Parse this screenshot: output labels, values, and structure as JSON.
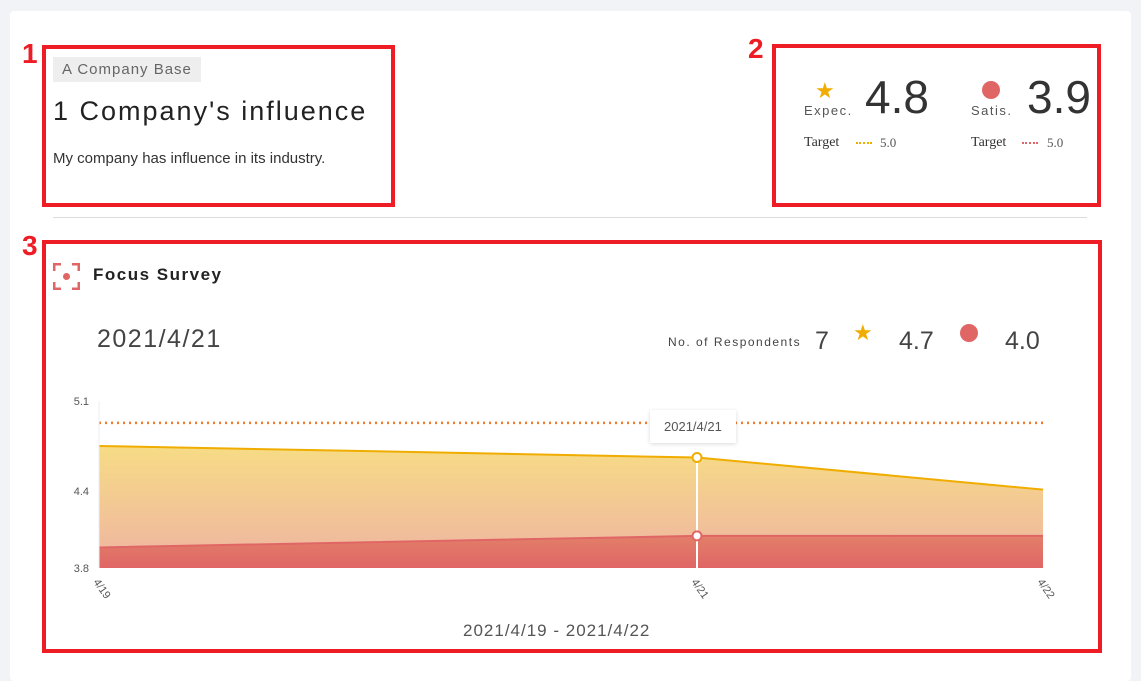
{
  "annotations": [
    "1",
    "2",
    "3"
  ],
  "question": {
    "category": "A Company Base",
    "title": "1 Company's influence",
    "description": "My company has influence in its industry."
  },
  "scores": {
    "expectation": {
      "icon": "star-icon",
      "label": "Expec.",
      "value": "4.8",
      "target_label": "Target",
      "target_value": "5.0",
      "color": "#f0ad00"
    },
    "satisfaction": {
      "icon": "circle-icon",
      "label": "Satis.",
      "value": "3.9",
      "target_label": "Target",
      "target_value": "5.0",
      "color": "#e06666"
    }
  },
  "focus": {
    "icon": "focus-icon",
    "title": "Focus Survey",
    "selected_date": "2021/4/21",
    "respondents_label": "No. of Respondents",
    "respondents": "7",
    "expectation": "4.7",
    "satisfaction": "4.0",
    "range": "2021/4/19 - 2021/4/22",
    "tooltip": "2021/4/21"
  },
  "chart_data": {
    "type": "area",
    "categories": [
      "4/19",
      "4/21",
      "4/22"
    ],
    "yticks": [
      "5.1",
      "4.4",
      "3.8"
    ],
    "ylim": [
      3.8,
      5.1
    ],
    "series": [
      {
        "key": "expectation",
        "values": [
          4.75,
          4.66,
          4.41
        ],
        "color": "#f0ad00"
      },
      {
        "key": "satisfaction",
        "values": [
          3.96,
          4.05,
          4.05
        ],
        "color": "#e06666"
      }
    ],
    "target_line": 4.93,
    "target_color": "#f07a2a",
    "highlight_index": 1
  }
}
